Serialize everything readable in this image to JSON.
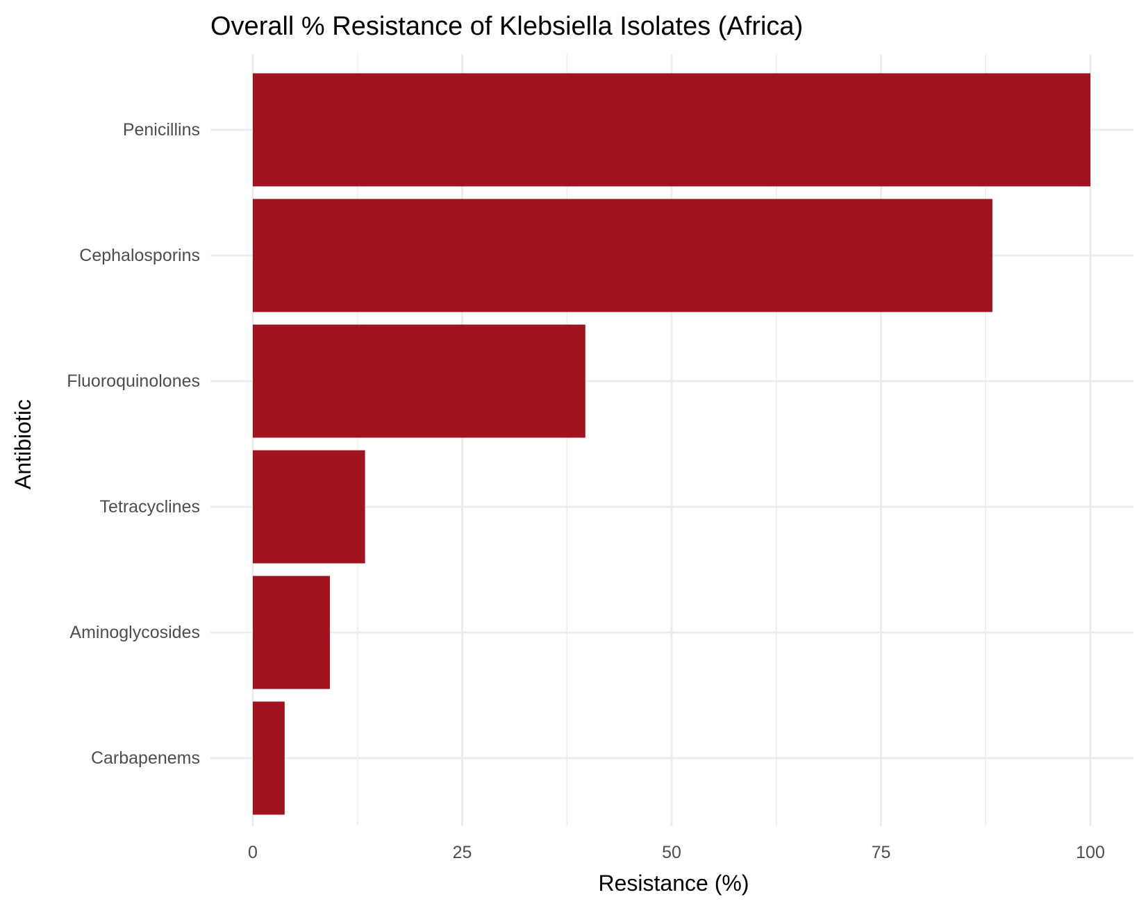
{
  "chart_data": {
    "type": "bar",
    "orientation": "horizontal",
    "title": "Overall % Resistance of Klebsiella Isolates (Africa)",
    "xlabel": "Resistance (%)",
    "ylabel": "Antibiotic",
    "categories": [
      "Penicillins",
      "Cephalosporins",
      "Fluoroquinolones",
      "Tetracyclines",
      "Aminoglycosides",
      "Carbapenems"
    ],
    "values": [
      100,
      88.3,
      39.7,
      13.4,
      9.2,
      3.8
    ],
    "xlim": [
      0,
      100
    ],
    "x_ticks": [
      "0",
      "25",
      "50",
      "75",
      "100"
    ],
    "bar_color": "#a0121d",
    "grid": true,
    "legend": "none"
  }
}
